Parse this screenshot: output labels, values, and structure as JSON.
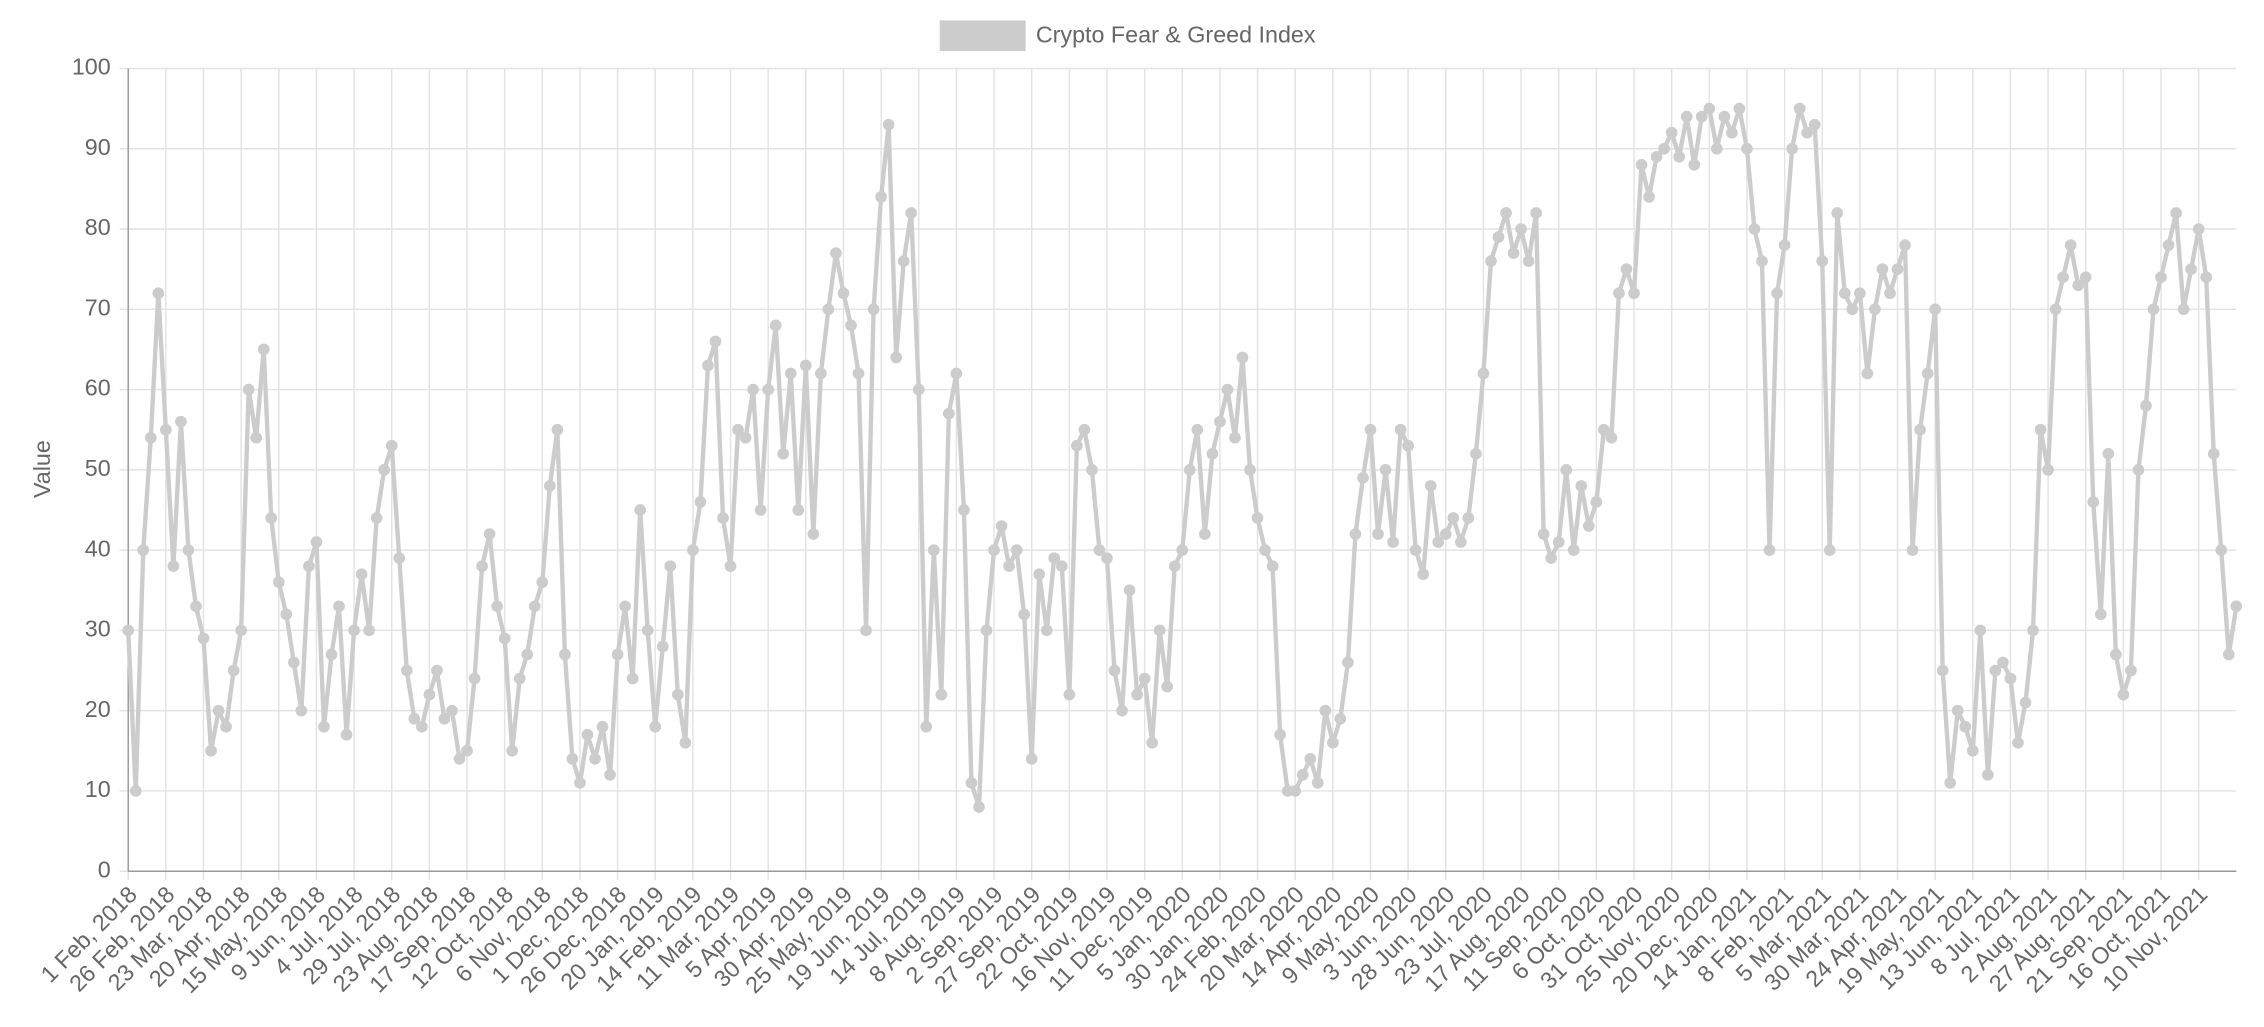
{
  "chart_data": {
    "type": "line",
    "y_label": "Value",
    "legend": "top",
    "grid": true,
    "ylim": [
      0,
      100
    ],
    "yticks": [
      0,
      10,
      20,
      30,
      40,
      50,
      60,
      70,
      80,
      90,
      100
    ],
    "categories": [
      "1 Feb, 2018",
      null,
      null,
      null,
      null,
      "26 Feb, 2018",
      null,
      null,
      null,
      null,
      "23 Mar, 2018",
      null,
      null,
      null,
      null,
      "20 Apr, 2018",
      null,
      null,
      null,
      null,
      "15 May, 2018",
      null,
      null,
      null,
      null,
      "9 Jun, 2018",
      null,
      null,
      null,
      null,
      "4 Jul, 2018",
      null,
      null,
      null,
      null,
      "29 Jul, 2018",
      null,
      null,
      null,
      null,
      "23 Aug, 2018",
      null,
      null,
      null,
      null,
      "17 Sep, 2018",
      null,
      null,
      null,
      null,
      "12 Oct, 2018",
      null,
      null,
      null,
      null,
      "6 Nov, 2018",
      null,
      null,
      null,
      null,
      "1 Dec, 2018",
      null,
      null,
      null,
      null,
      "26 Dec, 2018",
      null,
      null,
      null,
      null,
      "20 Jan, 2019",
      null,
      null,
      null,
      null,
      "14 Feb, 2019",
      null,
      null,
      null,
      null,
      "11 Mar, 2019",
      null,
      null,
      null,
      null,
      "5 Apr, 2019",
      null,
      null,
      null,
      null,
      "30 Apr, 2019",
      null,
      null,
      null,
      null,
      "25 May, 2019",
      null,
      null,
      null,
      null,
      "19 Jun, 2019",
      null,
      null,
      null,
      null,
      "14 Jul, 2019",
      null,
      null,
      null,
      null,
      "8 Aug, 2019",
      null,
      null,
      null,
      null,
      "2 Sep, 2019",
      null,
      null,
      null,
      null,
      "27 Sep, 2019",
      null,
      null,
      null,
      null,
      "22 Oct, 2019",
      null,
      null,
      null,
      null,
      "16 Nov, 2019",
      null,
      null,
      null,
      null,
      "11 Dec, 2019",
      null,
      null,
      null,
      null,
      "5 Jan, 2020",
      null,
      null,
      null,
      null,
      "30 Jan, 2020",
      null,
      null,
      null,
      null,
      "24 Feb, 2020",
      null,
      null,
      null,
      null,
      "20 Mar, 2020",
      null,
      null,
      null,
      null,
      "14 Apr, 2020",
      null,
      null,
      null,
      null,
      "9 May, 2020",
      null,
      null,
      null,
      null,
      "3 Jun, 2020",
      null,
      null,
      null,
      null,
      "28 Jun, 2020",
      null,
      null,
      null,
      null,
      "23 Jul, 2020",
      null,
      null,
      null,
      null,
      "17 Aug, 2020",
      null,
      null,
      null,
      null,
      "11 Sep, 2020",
      null,
      null,
      null,
      null,
      "6 Oct, 2020",
      null,
      null,
      null,
      null,
      "31 Oct, 2020",
      null,
      null,
      null,
      null,
      "25 Nov, 2020",
      null,
      null,
      null,
      null,
      "20 Dec, 2020",
      null,
      null,
      null,
      null,
      "14 Jan, 2021",
      null,
      null,
      null,
      null,
      "8 Feb, 2021",
      null,
      null,
      null,
      null,
      "5 Mar, 2021",
      null,
      null,
      null,
      null,
      "30 Mar, 2021",
      null,
      null,
      null,
      null,
      "24 Apr, 2021",
      null,
      null,
      null,
      null,
      "19 May, 2021",
      null,
      null,
      null,
      null,
      "13 Jun, 2021",
      null,
      null,
      null,
      null,
      "8 Jul, 2021",
      null,
      null,
      null,
      null,
      "2 Aug, 2021",
      null,
      null,
      null,
      null,
      "27 Aug, 2021",
      null,
      null,
      null,
      null,
      "21 Sep, 2021",
      null,
      null,
      null,
      null,
      "16 Oct, 2021",
      null,
      null,
      null,
      null,
      "10 Nov, 2021",
      null,
      null,
      null,
      null,
      null
    ],
    "series": [
      {
        "name": "Crypto Fear & Greed Index",
        "color": "#cccccc",
        "values": [
          30,
          10,
          40,
          54,
          72,
          55,
          38,
          56,
          40,
          33,
          29,
          15,
          20,
          18,
          25,
          30,
          60,
          54,
          65,
          44,
          36,
          32,
          26,
          20,
          38,
          41,
          18,
          27,
          33,
          17,
          30,
          37,
          30,
          44,
          50,
          53,
          39,
          25,
          19,
          18,
          22,
          25,
          19,
          20,
          14,
          15,
          24,
          38,
          42,
          33,
          29,
          15,
          24,
          27,
          33,
          36,
          48,
          55,
          27,
          14,
          11,
          17,
          14,
          18,
          12,
          27,
          33,
          24,
          45,
          30,
          18,
          28,
          38,
          22,
          16,
          40,
          46,
          63,
          66,
          44,
          38,
          55,
          54,
          60,
          45,
          60,
          68,
          52,
          62,
          45,
          63,
          42,
          62,
          70,
          77,
          72,
          68,
          62,
          30,
          70,
          84,
          93,
          64,
          76,
          82,
          60,
          18,
          40,
          22,
          57,
          62,
          45,
          11,
          8,
          30,
          40,
          43,
          38,
          40,
          32,
          14,
          37,
          30,
          39,
          38,
          22,
          53,
          55,
          50,
          40,
          39,
          25,
          20,
          35,
          22,
          24,
          16,
          30,
          23,
          38,
          40,
          50,
          55,
          42,
          52,
          56,
          60,
          54,
          64,
          50,
          44,
          40,
          38,
          17,
          10,
          10,
          12,
          14,
          11,
          20,
          16,
          19,
          26,
          42,
          49,
          55,
          42,
          50,
          41,
          55,
          53,
          40,
          37,
          48,
          41,
          42,
          44,
          41,
          44,
          52,
          62,
          76,
          79,
          82,
          77,
          80,
          76,
          82,
          42,
          39,
          41,
          50,
          40,
          48,
          43,
          46,
          55,
          54,
          72,
          75,
          72,
          88,
          84,
          89,
          90,
          92,
          89,
          94,
          88,
          94,
          95,
          90,
          94,
          92,
          95,
          90,
          80,
          76,
          40,
          72,
          78,
          90,
          95,
          92,
          93,
          76,
          40,
          82,
          72,
          70,
          72,
          62,
          70,
          75,
          72,
          75,
          78,
          40,
          55,
          62,
          70,
          25,
          11,
          20,
          18,
          15,
          30,
          12,
          25,
          26,
          24,
          16,
          21,
          30,
          55,
          50,
          70,
          74,
          78,
          73,
          74,
          46,
          32,
          52,
          27,
          22,
          25,
          50,
          58,
          70,
          74,
          78,
          82,
          70,
          75,
          80,
          74,
          52,
          40,
          27,
          33
        ]
      }
    ]
  }
}
